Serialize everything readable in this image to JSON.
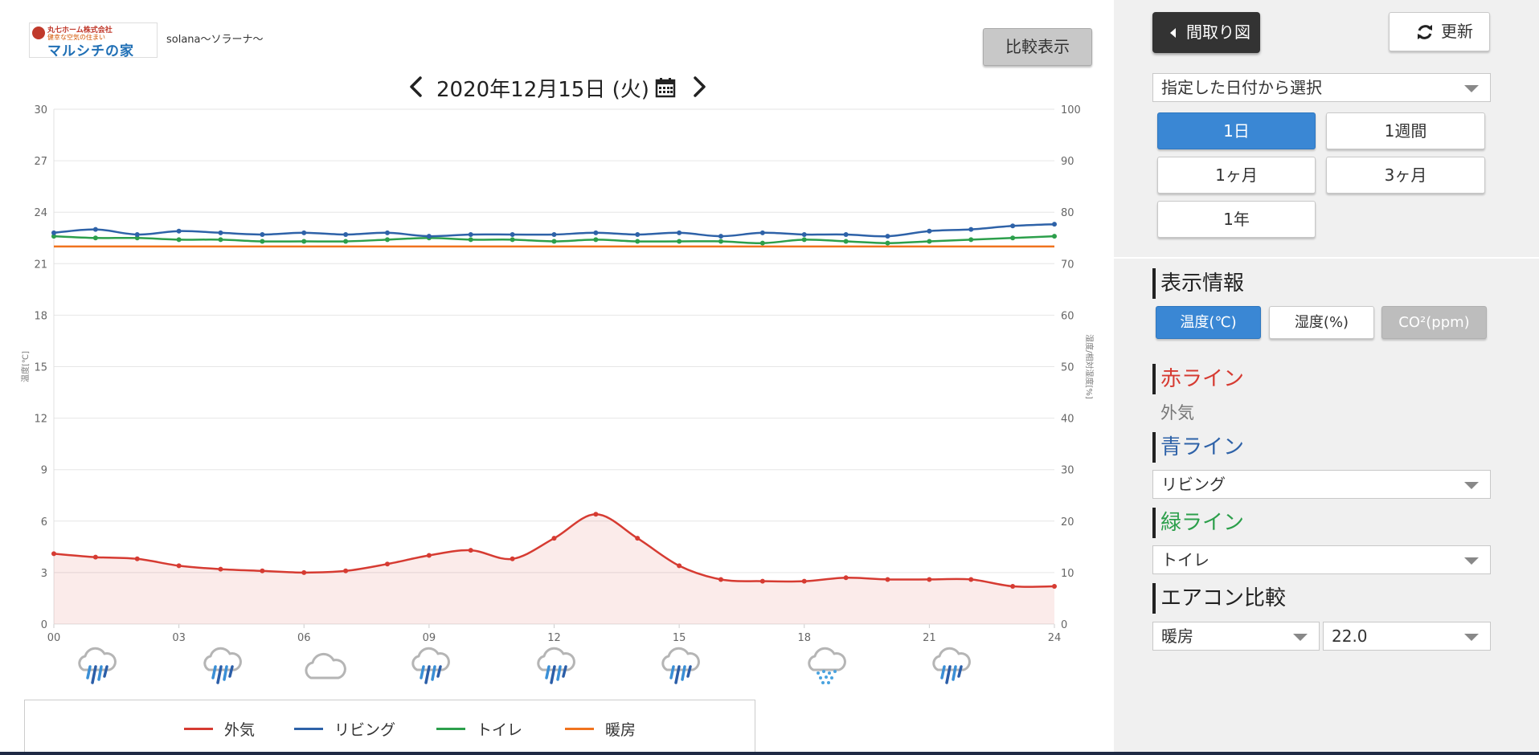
{
  "header": {
    "logo_company": "丸七ホーム株式会社",
    "logo_tagline": "健幸な空気の住まい",
    "logo_brand": "マルシチの家",
    "site_name": "solana〜ソラーナ〜",
    "compare_label": "比較表示",
    "date": "2020年12月15日 (火)"
  },
  "panel": {
    "layout_label": "間取り図",
    "refresh_label": "更新",
    "date_mode": "指定した日付から選択",
    "ranges": [
      {
        "label": "1日",
        "active": true
      },
      {
        "label": "1週間",
        "active": false
      },
      {
        "label": "1ヶ月",
        "active": false
      },
      {
        "label": "3ヶ月",
        "active": false
      },
      {
        "label": "1年",
        "active": false
      }
    ],
    "display_heading": "表示情報",
    "metrics": [
      {
        "label": "温度(℃)",
        "state": "active"
      },
      {
        "label": "湿度(%)",
        "state": "normal"
      },
      {
        "label": "CO²(ppm)",
        "state": "disabled"
      }
    ],
    "red_heading": "赤ライン",
    "red_value": "外気",
    "blue_heading": "青ライン",
    "blue_value": "リビング",
    "green_heading": "緑ライン",
    "green_value": "トイレ",
    "ac_heading": "エアコン比較",
    "ac_mode": "暖房",
    "ac_temp": "22.0",
    "colors": {
      "red": "#d63b32",
      "blue": "#2e62a8",
      "green": "#2c9f4b",
      "active": "#3a87d4"
    }
  },
  "weather": [
    {
      "hour": 1,
      "icon": "rain-icon"
    },
    {
      "hour": 4,
      "icon": "rain-icon"
    },
    {
      "hour": 6.5,
      "icon": "cloud-icon"
    },
    {
      "hour": 9,
      "icon": "rain-icon"
    },
    {
      "hour": 12,
      "icon": "rain-icon"
    },
    {
      "hour": 15,
      "icon": "rain-icon"
    },
    {
      "hour": 18.5,
      "icon": "snow-icon"
    },
    {
      "hour": 21.5,
      "icon": "rain-icon"
    }
  ],
  "chart_data": {
    "type": "line",
    "ylabel": "温度[℃]",
    "y2label": "湿度/相対湿度[%]",
    "ylim": [
      0,
      30
    ],
    "y2lim": [
      0,
      100
    ],
    "xlim": [
      0,
      24
    ],
    "yticks": [
      "0",
      "3",
      "6",
      "9",
      "12",
      "15",
      "18",
      "21",
      "24",
      "27",
      "30"
    ],
    "y2ticks": [
      "0",
      "10",
      "20",
      "30",
      "40",
      "50",
      "60",
      "70",
      "80",
      "90",
      "100"
    ],
    "xticks": [
      "00",
      "03",
      "06",
      "09",
      "12",
      "15",
      "18",
      "21",
      "24"
    ],
    "grid": true,
    "legend_position": "bottom",
    "x": [
      0,
      1,
      2,
      3,
      4,
      5,
      6,
      7,
      8,
      9,
      10,
      11,
      12,
      13,
      14,
      15,
      16,
      17,
      18,
      19,
      20,
      21,
      22,
      23,
      24
    ],
    "series": [
      {
        "name": "外気",
        "color": "#d63b32",
        "fill": true,
        "markers": true,
        "values": [
          4.1,
          3.9,
          3.8,
          3.4,
          3.2,
          3.1,
          3.0,
          3.1,
          3.5,
          4.0,
          4.3,
          3.8,
          5.0,
          6.4,
          5.0,
          3.4,
          2.6,
          2.5,
          2.5,
          2.7,
          2.6,
          2.6,
          2.6,
          2.2,
          2.2
        ]
      },
      {
        "name": "リビング",
        "color": "#2e62a8",
        "fill": false,
        "markers": true,
        "values": [
          22.8,
          23.0,
          22.7,
          22.9,
          22.8,
          22.7,
          22.8,
          22.7,
          22.8,
          22.6,
          22.7,
          22.7,
          22.7,
          22.8,
          22.7,
          22.8,
          22.6,
          22.8,
          22.7,
          22.7,
          22.6,
          22.9,
          23.0,
          23.2,
          23.3
        ]
      },
      {
        "name": "トイレ",
        "color": "#2c9f4b",
        "fill": false,
        "markers": true,
        "values": [
          22.6,
          22.5,
          22.5,
          22.4,
          22.4,
          22.3,
          22.3,
          22.3,
          22.4,
          22.5,
          22.4,
          22.4,
          22.3,
          22.4,
          22.3,
          22.3,
          22.3,
          22.2,
          22.4,
          22.3,
          22.2,
          22.3,
          22.4,
          22.5,
          22.6
        ]
      },
      {
        "name": "暖房",
        "color": "#f0731e",
        "fill": false,
        "markers": false,
        "values": [
          22.0,
          22.0,
          22.0,
          22.0,
          22.0,
          22.0,
          22.0,
          22.0,
          22.0,
          22.0,
          22.0,
          22.0,
          22.0,
          22.0,
          22.0,
          22.0,
          22.0,
          22.0,
          22.0,
          22.0,
          22.0,
          22.0,
          22.0,
          22.0,
          22.0
        ]
      }
    ]
  }
}
